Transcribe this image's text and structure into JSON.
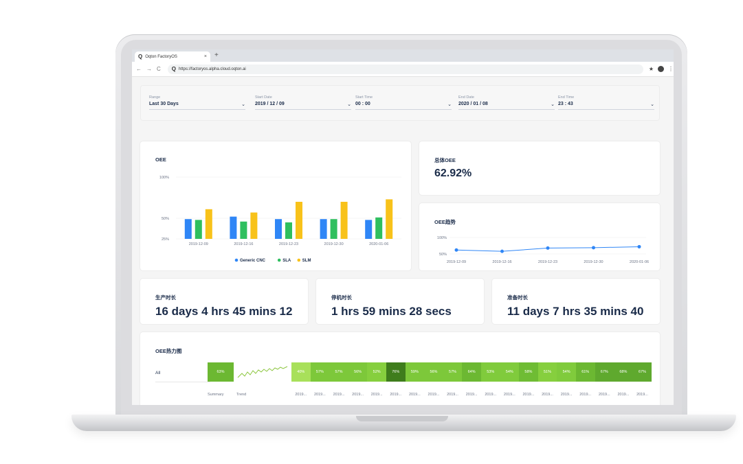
{
  "browser": {
    "tab_title": "Oqton FactoryOS",
    "tab_close": "×",
    "new_tab": "+",
    "tab_logo": "Q",
    "url": "https://factoryos.alpha.cloud.oqton.ai",
    "nav_back": "←",
    "nav_forward": "→",
    "nav_reload": "C",
    "star": "★",
    "menu": "⋮"
  },
  "filters": {
    "range": {
      "label": "Range",
      "value": "Last 30 Days"
    },
    "start_date": {
      "label": "Start Date",
      "value": "2019 / 12 / 09"
    },
    "start_time": {
      "label": "Start Time",
      "value": "00 : 00"
    },
    "end_date": {
      "label": "End Date",
      "value": "2020 / 01 / 08"
    },
    "end_time": {
      "label": "End Time",
      "value": "23 : 43"
    },
    "chevron": "⌄"
  },
  "oee_card": {
    "title": "OEE"
  },
  "chart_data": [
    {
      "type": "bar",
      "title": "OEE",
      "categories": [
        "2019-12-09",
        "2019-12-16",
        "2019-12-23",
        "2019-12-30",
        "2020-01-06"
      ],
      "yticks": [
        "100%",
        "50%",
        "25%"
      ],
      "series": [
        {
          "name": "Generic CNC",
          "color": "#2f86f6",
          "values": [
            49,
            52,
            49,
            49,
            48
          ]
        },
        {
          "name": "SLA",
          "color": "#2fbf5f",
          "values": [
            48,
            46,
            45,
            49,
            51
          ]
        },
        {
          "name": "SLM",
          "color": "#f8c21a",
          "values": [
            61,
            57,
            70,
            70,
            73
          ]
        }
      ],
      "legend": "bottom"
    },
    {
      "type": "line",
      "title": "OEE趋势",
      "x": [
        "2019-12-09",
        "2019-12-16",
        "2019-12-23",
        "2019-12-30",
        "2020-01-06"
      ],
      "yticks": [
        "100%",
        "50%"
      ],
      "values": [
        62,
        58,
        68,
        69,
        72
      ],
      "color": "#2f86f6"
    }
  ],
  "overall": {
    "title": "总体OEE",
    "value": "62.92%"
  },
  "trend": {
    "title": "OEE趋势"
  },
  "metrics": [
    {
      "title": "生产时长",
      "value": "16 days 4 hrs 45 mins 12"
    },
    {
      "title": "停机时长",
      "value": "1 hrs 59 mins 28 secs"
    },
    {
      "title": "准备时长",
      "value": "11 days 7 hrs 35 mins 40"
    }
  ],
  "heatmap": {
    "title": "OEE热力图",
    "row_label": "All",
    "summary": "63%",
    "summary_header": "Summary",
    "trend_header": "Trend",
    "cells": [
      "40%",
      "57%",
      "57%",
      "56%",
      "52%",
      "76%",
      "59%",
      "56%",
      "57%",
      "64%",
      "53%",
      "54%",
      "58%",
      "51%",
      "54%",
      "61%",
      "67%",
      "68%",
      "67%"
    ],
    "cell_colors": [
      "#a8e05a",
      "#7dc83a",
      "#7dc83a",
      "#7dc83a",
      "#86cf3e",
      "#3f7d1c",
      "#7dc83a",
      "#7dc83a",
      "#7dc83a",
      "#6cb832",
      "#80cb3c",
      "#80cb3c",
      "#6fbc34",
      "#86cf3e",
      "#80cb3c",
      "#6cb832",
      "#5fa92e",
      "#5fa92e",
      "#5fa92e"
    ],
    "date_label": "2019..."
  }
}
